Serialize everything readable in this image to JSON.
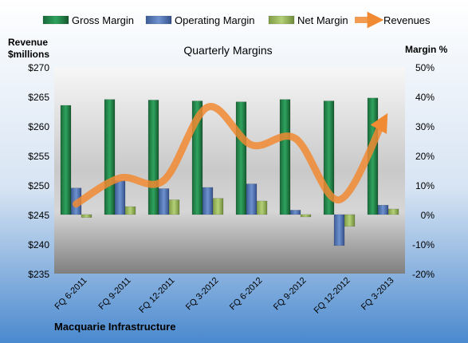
{
  "chart_data": {
    "type": "bar",
    "title": "Quarterly Margins",
    "categories": [
      "FQ 6-2011",
      "FQ 9-2011",
      "FQ 12-2011",
      "FQ 3-2012",
      "FQ 6-2012",
      "FQ 9-2012",
      "FQ 12-2012",
      "FQ 3-2013"
    ],
    "left_axis": {
      "label_line1": "Revenue",
      "label_line2": "$millions",
      "range": [
        235,
        270
      ],
      "ticks": [
        235,
        240,
        245,
        250,
        255,
        260,
        265,
        270
      ],
      "tick_labels": [
        "$235",
        "$240",
        "$245",
        "$250",
        "$255",
        "$260",
        "$265",
        "$270"
      ]
    },
    "right_axis": {
      "label": "Margin %",
      "range": [
        -20,
        50
      ],
      "ticks": [
        -20,
        -10,
        0,
        10,
        20,
        30,
        40,
        50
      ],
      "tick_labels": [
        "-20%",
        "-10%",
        "0%",
        "10%",
        "20%",
        "30%",
        "40%",
        "50%"
      ]
    },
    "series": [
      {
        "name": "Gross Margin",
        "type": "bar",
        "axis": "right",
        "color": "#1E7B45",
        "values": [
          37,
          39,
          38.8,
          38.5,
          38.2,
          39,
          38.5,
          39.5
        ]
      },
      {
        "name": "Operating Margin",
        "type": "bar",
        "axis": "right",
        "color": "#4F72B0",
        "values": [
          9,
          11.5,
          8.8,
          9.2,
          10.4,
          1.5,
          -10.5,
          3.2
        ]
      },
      {
        "name": "Net Margin",
        "type": "bar",
        "axis": "right",
        "color": "#9BBB59",
        "values": [
          -1,
          2.7,
          5,
          5.5,
          4.6,
          -0.8,
          -4,
          1.9
        ]
      },
      {
        "name": "Revenues",
        "type": "line",
        "axis": "left",
        "color": "#F08A33",
        "values": [
          246.8,
          251.2,
          250.8,
          263.2,
          256.8,
          257.9,
          247.5,
          260.8
        ]
      }
    ],
    "legend_position": "top",
    "grid": false,
    "footer": "Macquarie Infrastructure"
  }
}
